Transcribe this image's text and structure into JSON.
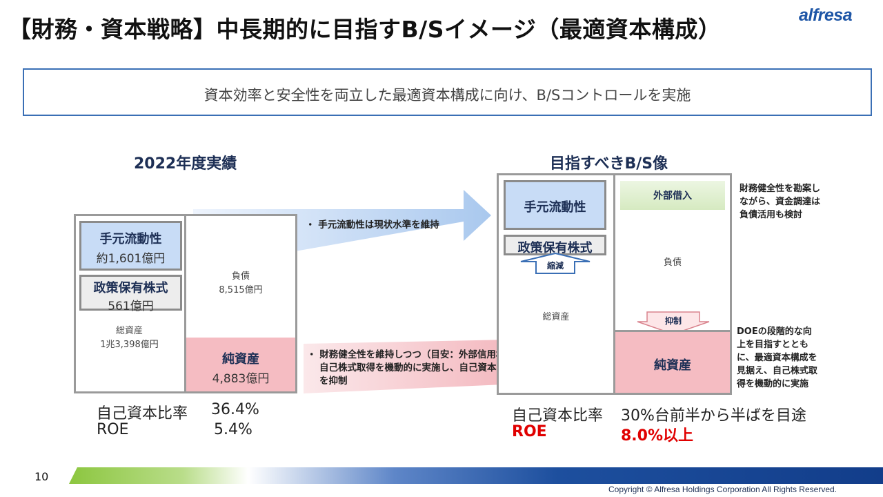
{
  "header": {
    "title": "【財務・資本戦略】中長期的に目指すB/Sイメージ（最適資本構成）",
    "logo_text": "alfresa"
  },
  "banner": {
    "text": "資本効率と安全性を両立した最適資本構成に向け、B/Sコントロールを実施"
  },
  "left_bs": {
    "heading": "2022年度実績",
    "cash_label": "手元流動性",
    "cash_value": "約1,601億円",
    "cross_label": "政策保有株式",
    "cross_value": "561億円",
    "total_label": "総資産",
    "total_value": "1兆3,398億円",
    "liab_label": "負債",
    "liab_value": "8,515億円",
    "equity_label": "純資産",
    "equity_value": "4,883億円",
    "ratio_label": "自己資本比率",
    "ratio_value": "36.4%",
    "roe_label": "ROE",
    "roe_value": "5.4%"
  },
  "arrows": {
    "top_text": "・ 手元流動性は現状水準を維持",
    "bottom_line1": "・ 財務健全性を維持しつつ（目安：外部信用格付A＋格）",
    "bottom_line2": "自己株式取得を機動的に実施し、自己資本の積み上がり",
    "bottom_line3": "を抑制"
  },
  "right_bs": {
    "heading": "目指すべきB/S像",
    "cash_label": "手元流動性",
    "cross_label": "政策保有株式",
    "reduce_label": "縮減",
    "total_label": "総資産",
    "external_label": "外部借入",
    "liab_label": "負債",
    "suppress_label": "抑制",
    "equity_label": "純資産",
    "ratio_label": "自己資本比率",
    "ratio_value": "30%台前半から半ばを目途",
    "roe_label": "ROE",
    "roe_value": "8.0%以上"
  },
  "notes": {
    "top": [
      "財務健全性を勘案し",
      "ながら、資金調達は",
      "負債活用も検討"
    ],
    "bottom": [
      "DOEの段階的な向",
      "上を目指すととも",
      "に、最適資本構成を",
      "見据え、自己株式取",
      "得を機動的に実施"
    ]
  },
  "footer": {
    "page_number": "10",
    "copyright": "Copyright © Alfresa Holdings Corporation All Rights Reserved."
  },
  "colors": {
    "navy": "#1d2f55",
    "accent_blue": "#1d55a6",
    "cash_blue": "#c8dcf6",
    "equity_pink": "#f5bcc2",
    "external_green": "#e3f1d3",
    "highlight_red": "#e00000"
  }
}
